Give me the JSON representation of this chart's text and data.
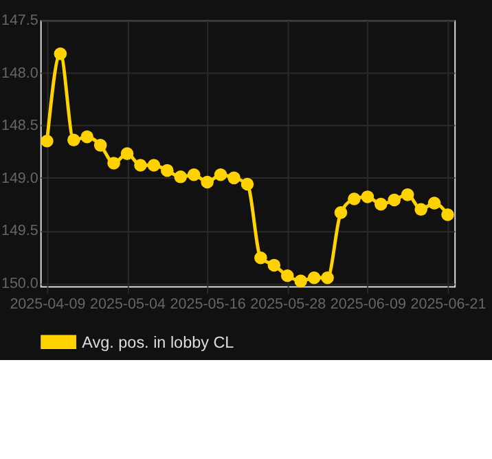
{
  "chart_data": {
    "type": "line",
    "categories": [
      "2025-04-09",
      null,
      null,
      null,
      null,
      null,
      "2025-05-04",
      null,
      null,
      null,
      null,
      null,
      "2025-05-16",
      null,
      null,
      null,
      null,
      null,
      "2025-05-28",
      null,
      null,
      null,
      null,
      null,
      "2025-06-09",
      null,
      null,
      null,
      null,
      null,
      "2025-06-21"
    ],
    "series": [
      {
        "name": "Avg. pos. in lobby CL",
        "color": "#ffd200",
        "values": [
          148.65,
          147.82,
          148.64,
          148.61,
          148.69,
          148.86,
          148.77,
          148.88,
          148.88,
          148.93,
          148.99,
          148.97,
          149.04,
          148.97,
          149.0,
          149.06,
          149.76,
          149.83,
          149.93,
          149.98,
          149.95,
          149.95,
          149.33,
          149.2,
          149.18,
          149.25,
          149.21,
          149.16,
          149.3,
          149.24,
          149.35
        ]
      }
    ],
    "ylim": [
      150.03,
      147.5
    ],
    "yticks": [
      {
        "value": 147.5,
        "label": "147.5"
      },
      {
        "value": 148.0,
        "label": "148.0"
      },
      {
        "value": 148.5,
        "label": "148.5"
      },
      {
        "value": 149.0,
        "label": "149.0"
      },
      {
        "value": 149.5,
        "label": "149.5"
      },
      {
        "value": 150.0,
        "label": "150.0"
      }
    ],
    "grid": true,
    "legend": "bottom",
    "marker": "circle",
    "line_style": "solid"
  }
}
